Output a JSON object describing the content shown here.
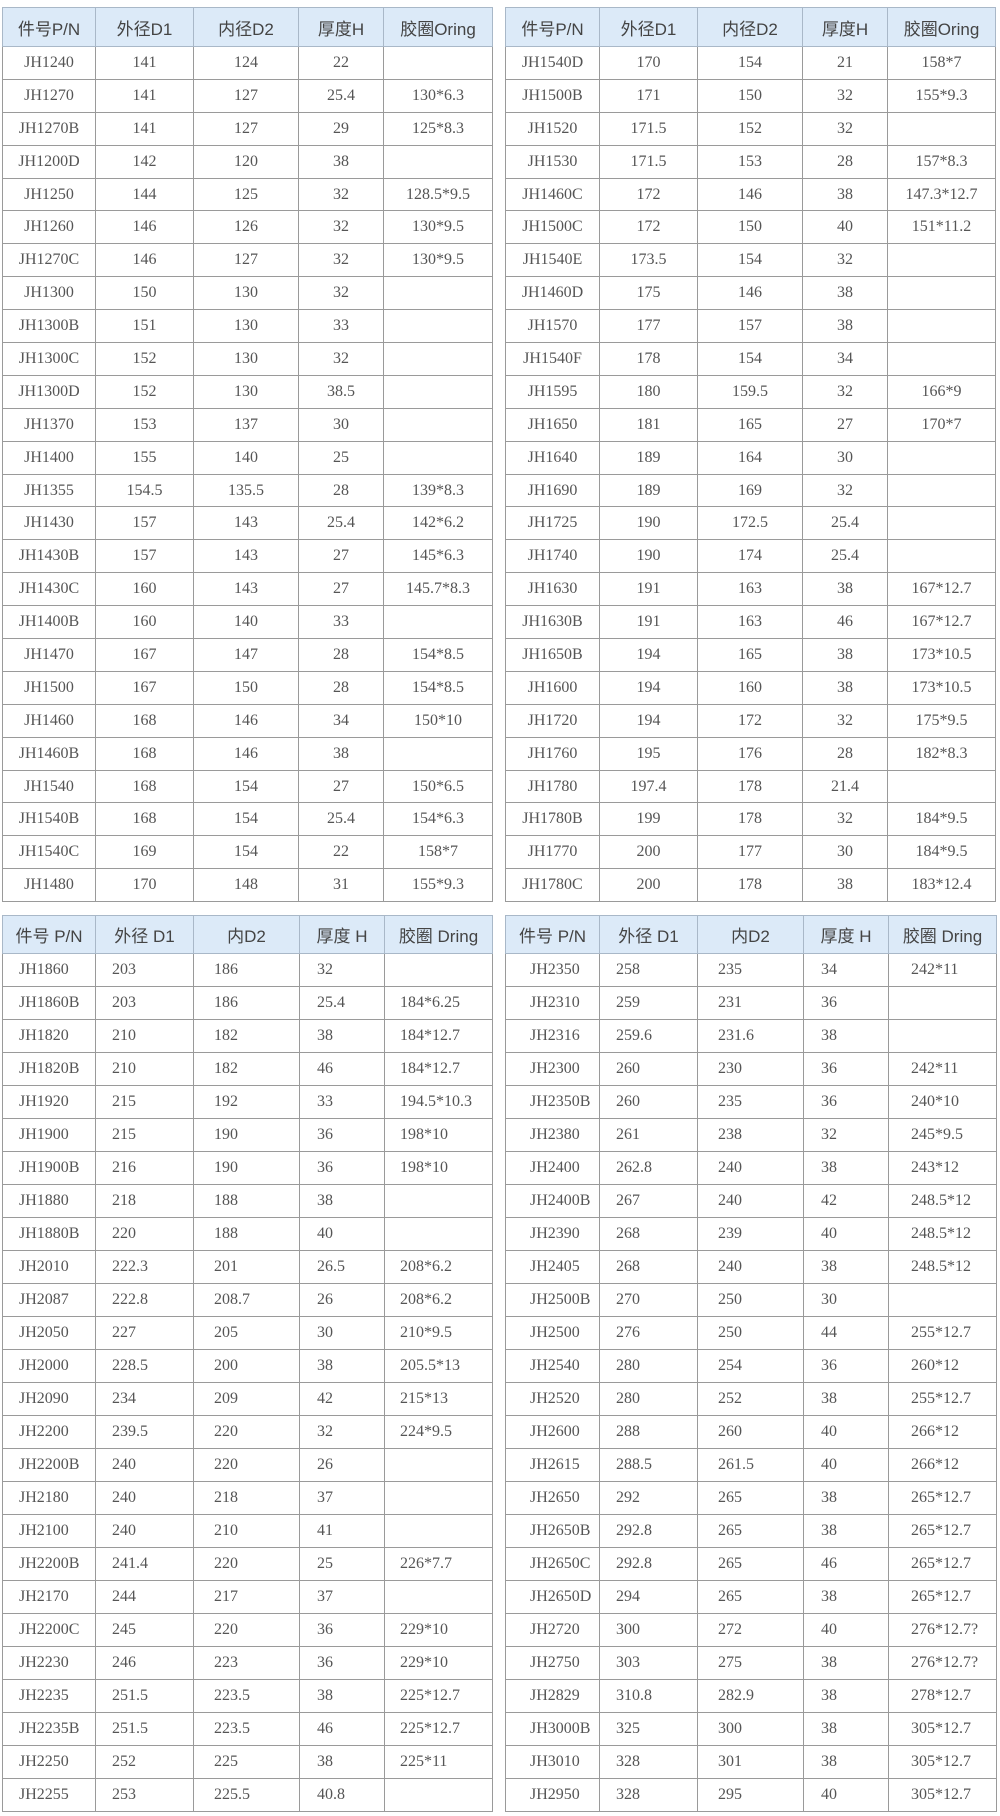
{
  "tables": [
    {
      "headers": [
        "件号P/N",
        "外径D1",
        "内径D2",
        "厚度H",
        "胶圈Oring"
      ],
      "rows": [
        [
          "JH1240",
          "141",
          "124",
          "22",
          ""
        ],
        [
          "JH1270",
          "141",
          "127",
          "25.4",
          "130*6.3"
        ],
        [
          "JH1270B",
          "141",
          "127",
          "29",
          "125*8.3"
        ],
        [
          "JH1200D",
          "142",
          "120",
          "38",
          ""
        ],
        [
          "JH1250",
          "144",
          "125",
          "32",
          "128.5*9.5"
        ],
        [
          "JH1260",
          "146",
          "126",
          "32",
          "130*9.5"
        ],
        [
          "JH1270C",
          "146",
          "127",
          "32",
          "130*9.5"
        ],
        [
          "JH1300",
          "150",
          "130",
          "32",
          ""
        ],
        [
          "JH1300B",
          "151",
          "130",
          "33",
          ""
        ],
        [
          "JH1300C",
          "152",
          "130",
          "32",
          ""
        ],
        [
          "JH1300D",
          "152",
          "130",
          "38.5",
          ""
        ],
        [
          "JH1370",
          "153",
          "137",
          "30",
          ""
        ],
        [
          "JH1400",
          "155",
          "140",
          "25",
          ""
        ],
        [
          "JH1355",
          "154.5",
          "135.5",
          "28",
          "139*8.3"
        ],
        [
          "JH1430",
          "157",
          "143",
          "25.4",
          "142*6.2"
        ],
        [
          "JH1430B",
          "157",
          "143",
          "27",
          "145*6.3"
        ],
        [
          "JH1430C",
          "160",
          "143",
          "27",
          "145.7*8.3"
        ],
        [
          "JH1400B",
          "160",
          "140",
          "33",
          ""
        ],
        [
          "JH1470",
          "167",
          "147",
          "28",
          "154*8.5"
        ],
        [
          "JH1500",
          "167",
          "150",
          "28",
          "154*8.5"
        ],
        [
          "JH1460",
          "168",
          "146",
          "34",
          "150*10"
        ],
        [
          "JH1460B",
          "168",
          "146",
          "38",
          ""
        ],
        [
          "JH1540",
          "168",
          "154",
          "27",
          "150*6.5"
        ],
        [
          "JH1540B",
          "168",
          "154",
          "25.4",
          "154*6.3"
        ],
        [
          "JH1540C",
          "169",
          "154",
          "22",
          "158*7"
        ],
        [
          "JH1480",
          "170",
          "148",
          "31",
          "155*9.3"
        ]
      ]
    },
    {
      "headers": [
        "件号P/N",
        "外径D1",
        "内径D2",
        "厚度H",
        "胶圈Oring"
      ],
      "rows": [
        [
          "JH1540D",
          "170",
          "154",
          "21",
          "158*7"
        ],
        [
          "JH1500B",
          "171",
          "150",
          "32",
          "155*9.3"
        ],
        [
          "JH1520",
          "171.5",
          "152",
          "32",
          ""
        ],
        [
          "JH1530",
          "171.5",
          "153",
          "28",
          "157*8.3"
        ],
        [
          "JH1460C",
          "172",
          "146",
          "38",
          "147.3*12.7"
        ],
        [
          "JH1500C",
          "172",
          "150",
          "40",
          "151*11.2"
        ],
        [
          "JH1540E",
          "173.5",
          "154",
          "32",
          ""
        ],
        [
          "JH1460D",
          "175",
          "146",
          "38",
          ""
        ],
        [
          "JH1570",
          "177",
          "157",
          "38",
          ""
        ],
        [
          "JH1540F",
          "178",
          "154",
          "34",
          ""
        ],
        [
          "JH1595",
          "180",
          "159.5",
          "32",
          "166*9"
        ],
        [
          "JH1650",
          "181",
          "165",
          "27",
          "170*7"
        ],
        [
          "JH1640",
          "189",
          "164",
          "30",
          ""
        ],
        [
          "JH1690",
          "189",
          "169",
          "32",
          ""
        ],
        [
          "JH1725",
          "190",
          "172.5",
          "25.4",
          ""
        ],
        [
          "JH1740",
          "190",
          "174",
          "25.4",
          ""
        ],
        [
          "JH1630",
          "191",
          "163",
          "38",
          "167*12.7"
        ],
        [
          "JH1630B",
          "191",
          "163",
          "46",
          "167*12.7"
        ],
        [
          "JH1650B",
          "194",
          "165",
          "38",
          "173*10.5"
        ],
        [
          "JH1600",
          "194",
          "160",
          "38",
          "173*10.5"
        ],
        [
          "JH1720",
          "194",
          "172",
          "32",
          "175*9.5"
        ],
        [
          "JH1760",
          "195",
          "176",
          "28",
          "182*8.3"
        ],
        [
          "JH1780",
          "197.4",
          "178",
          "21.4",
          ""
        ],
        [
          "JH1780B",
          "199",
          "178",
          "32",
          "184*9.5"
        ],
        [
          "JH1770",
          "200",
          "177",
          "30",
          "184*9.5"
        ],
        [
          "JH1780C",
          "200",
          "178",
          "38",
          "183*12.4"
        ]
      ]
    },
    {
      "headers": [
        "件号 P/N",
        "外径 D1",
        "内D2",
        "厚度 H",
        "胶圈 Dring"
      ],
      "rows": [
        [
          "JH1860",
          "203",
          "186",
          "32",
          ""
        ],
        [
          "JH1860B",
          "203",
          "186",
          "25.4",
          "184*6.25"
        ],
        [
          "JH1820",
          "210",
          "182",
          "38",
          "184*12.7"
        ],
        [
          "JH1820B",
          "210",
          "182",
          "46",
          "184*12.7"
        ],
        [
          "JH1920",
          "215",
          "192",
          "33",
          "194.5*10.3"
        ],
        [
          "JH1900",
          "215",
          "190",
          "36",
          "198*10"
        ],
        [
          "JH1900B",
          "216",
          "190",
          "36",
          "198*10"
        ],
        [
          "JH1880",
          "218",
          "188",
          "38",
          ""
        ],
        [
          "JH1880B",
          "220",
          "188",
          "40",
          ""
        ],
        [
          "JH2010",
          "222.3",
          "201",
          "26.5",
          "208*6.2"
        ],
        [
          "JH2087",
          "222.8",
          "208.7",
          "26",
          "208*6.2"
        ],
        [
          "JH2050",
          "227",
          "205",
          "30",
          "210*9.5"
        ],
        [
          "JH2000",
          "228.5",
          "200",
          "38",
          "205.5*13"
        ],
        [
          "JH2090",
          "234",
          "209",
          "42",
          "215*13"
        ],
        [
          "JH2200",
          "239.5",
          "220",
          "32",
          "224*9.5"
        ],
        [
          "JH2200B",
          "240",
          "220",
          "26",
          ""
        ],
        [
          "JH2180",
          "240",
          "218",
          "37",
          ""
        ],
        [
          "JH2100",
          "240",
          "210",
          "41",
          ""
        ],
        [
          "JH2200B",
          "241.4",
          "220",
          "25",
          "226*7.7"
        ],
        [
          "JH2170",
          "244",
          "217",
          "37",
          ""
        ],
        [
          "JH2200C",
          "245",
          "220",
          "36",
          "229*10"
        ],
        [
          "JH2230",
          "246",
          "223",
          "36",
          "229*10"
        ],
        [
          "JH2235",
          "251.5",
          "223.5",
          "38",
          "225*12.7"
        ],
        [
          "JH2235B",
          "251.5",
          "223.5",
          "46",
          "225*12.7"
        ],
        [
          "JH2250",
          "252",
          "225",
          "38",
          "225*11"
        ],
        [
          "JH2255",
          "253",
          "225.5",
          "40.8",
          ""
        ]
      ]
    },
    {
      "headers": [
        "件号 P/N",
        "外径 D1",
        "内D2",
        "厚度 H",
        "胶圈 Dring"
      ],
      "rows": [
        [
          "JH2350",
          "258",
          "235",
          "34",
          "242*11"
        ],
        [
          "JH2310",
          "259",
          "231",
          "36",
          ""
        ],
        [
          "JH2316",
          "259.6",
          "231.6",
          "38",
          ""
        ],
        [
          "JH2300",
          "260",
          "230",
          "36",
          "242*11"
        ],
        [
          "JH2350B",
          "260",
          "235",
          "36",
          "240*10"
        ],
        [
          "JH2380",
          "261",
          "238",
          "32",
          "245*9.5"
        ],
        [
          "JH2400",
          "262.8",
          "240",
          "38",
          "243*12"
        ],
        [
          "JH2400B",
          "267",
          "240",
          "42",
          "248.5*12"
        ],
        [
          "JH2390",
          "268",
          "239",
          "40",
          "248.5*12"
        ],
        [
          "JH2405",
          "268",
          "240",
          "38",
          "248.5*12"
        ],
        [
          "JH2500B",
          "270",
          "250",
          "30",
          ""
        ],
        [
          "JH2500",
          "276",
          "250",
          "44",
          "255*12.7"
        ],
        [
          "JH2540",
          "280",
          "254",
          "36",
          "260*12"
        ],
        [
          "JH2520",
          "280",
          "252",
          "38",
          "255*12.7"
        ],
        [
          "JH2600",
          "288",
          "260",
          "40",
          "266*12"
        ],
        [
          "JH2615",
          "288.5",
          "261.5",
          "40",
          "266*12"
        ],
        [
          "JH2650",
          "292",
          "265",
          "38",
          "265*12.7"
        ],
        [
          "JH2650B",
          "292.8",
          "265",
          "38",
          "265*12.7"
        ],
        [
          "JH2650C",
          "292.8",
          "265",
          "46",
          "265*12.7"
        ],
        [
          "JH2650D",
          "294",
          "265",
          "38",
          "265*12.7"
        ],
        [
          "JH2720",
          "300",
          "272",
          "40",
          "276*12.7?"
        ],
        [
          "JH2750",
          "303",
          "275",
          "38",
          "276*12.7?"
        ],
        [
          "JH2829",
          "310.8",
          "282.9",
          "38",
          "278*12.7"
        ],
        [
          "JH3000B",
          "325",
          "300",
          "38",
          "305*12.7"
        ],
        [
          "JH3010",
          "328",
          "301",
          "38",
          "305*12.7"
        ],
        [
          "JH2950",
          "328",
          "295",
          "40",
          "305*12.7"
        ]
      ]
    }
  ]
}
